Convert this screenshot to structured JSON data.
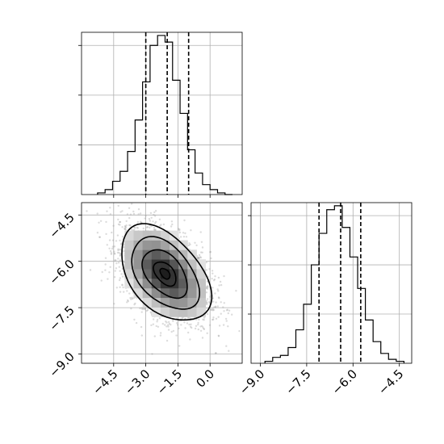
{
  "chart_data": [
    {
      "type": "histogram",
      "panel": "top-left marginal",
      "xlim": [
        -6.0,
        1.5
      ],
      "bin_edges": [
        -5.25,
        -4.9,
        -4.55,
        -4.2,
        -3.85,
        -3.5,
        -3.15,
        -2.8,
        -2.45,
        -2.1,
        -1.75,
        -1.4,
        -1.05,
        -0.7,
        -0.35,
        0.0,
        0.35,
        0.7,
        1.05
      ],
      "counts": [
        1,
        3,
        8,
        14,
        26,
        45,
        68,
        90,
        96,
        92,
        69,
        49,
        27,
        13,
        6,
        3,
        1,
        0
      ],
      "quantiles": [
        -3.0,
        -2.0,
        -1.0
      ],
      "grid": true,
      "y_tick_labels_shown": false
    },
    {
      "type": "scatter+contour",
      "panel": "bottom-left 2D",
      "xlim": [
        -6.0,
        1.5
      ],
      "ylim": [
        -9.3,
        -4.1
      ],
      "x_ticks": [
        "−4.5",
        "−3.0",
        "−1.5",
        "0.0"
      ],
      "y_ticks": [
        "−4.5",
        "−6.0",
        "−7.5",
        "−9.0"
      ],
      "center": [
        -2.1,
        -6.4
      ],
      "correlation": "negative",
      "grid": true
    },
    {
      "type": "histogram",
      "panel": "bottom-right marginal",
      "xlim": [
        -9.3,
        -4.1
      ],
      "bin_edges": [
        -8.85,
        -8.6,
        -8.35,
        -8.1,
        -7.85,
        -7.6,
        -7.35,
        -7.1,
        -6.85,
        -6.6,
        -6.35,
        -6.1,
        -5.85,
        -5.6,
        -5.35,
        -5.1,
        -4.85,
        -4.6,
        -4.35
      ],
      "counts": [
        1,
        3,
        4,
        8,
        17,
        30,
        50,
        66,
        78,
        80,
        69,
        54,
        38,
        22,
        11,
        5,
        2,
        1
      ],
      "quantiles": [
        -7.1,
        -6.4,
        -5.75
      ],
      "x_ticks": [
        "−9.0",
        "−7.5",
        "−6.0",
        "−4.5"
      ],
      "grid": true,
      "y_tick_labels_shown": false
    }
  ]
}
